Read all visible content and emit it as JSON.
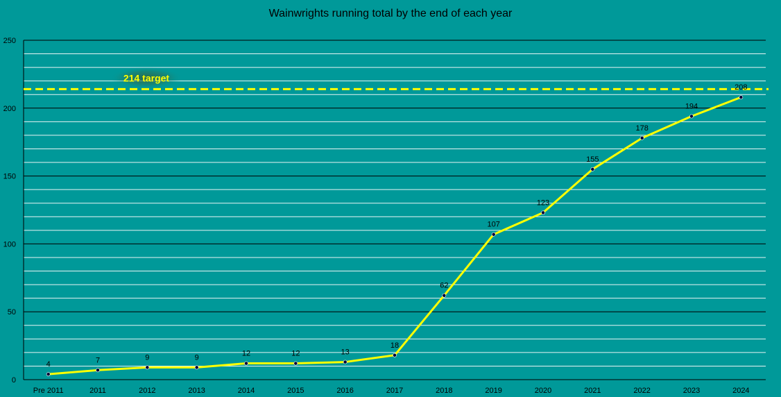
{
  "chart_data": {
    "type": "line",
    "title": "Wainwrights running total by the end of each year",
    "xlabel": "",
    "ylabel": "",
    "categories": [
      "Pre 2011",
      "2011",
      "2012",
      "2013",
      "2014",
      "2015",
      "2016",
      "2017",
      "2018",
      "2019",
      "2020",
      "2021",
      "2022",
      "2023",
      "2024"
    ],
    "series": [
      {
        "values": [
          4,
          7,
          9,
          9,
          12,
          12,
          13,
          18,
          62,
          107,
          123,
          155,
          178,
          194,
          208
        ],
        "color": "#FFFF00",
        "marker_color": "#000033",
        "data_labels": true
      }
    ],
    "ylim": [
      0,
      250
    ],
    "y_ticks": [
      0,
      50,
      100,
      150,
      200,
      250
    ],
    "major_gridlines": true,
    "minor_gridline_step": 10,
    "target_line": {
      "value": 214,
      "label": "214 target",
      "color": "#FFFF00",
      "style": "dashed"
    },
    "background_color": "#009999",
    "major_grid_color": "#000000",
    "minor_grid_color": "#E8F4F4"
  }
}
